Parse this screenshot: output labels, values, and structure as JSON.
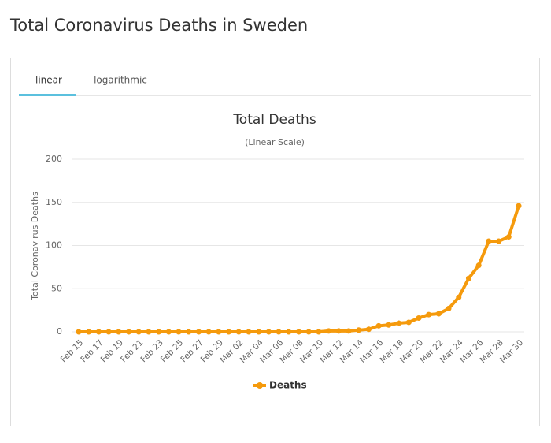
{
  "header": {
    "title": "Total Coronavirus Deaths in Sweden"
  },
  "tabs": [
    "linear",
    "logarithmic"
  ],
  "chart_data": {
    "type": "line",
    "title": "Total Deaths",
    "subtitle": "(Linear Scale)",
    "y_label": "Total Coronavirus Deaths",
    "categories": [
      "Feb 15",
      null,
      "Feb 17",
      null,
      "Feb 19",
      null,
      "Feb 21",
      null,
      "Feb 23",
      null,
      "Feb 25",
      null,
      "Feb 27",
      null,
      "Feb 29",
      null,
      "Mar 02",
      null,
      "Mar 04",
      null,
      "Mar 06",
      null,
      "Mar 08",
      null,
      "Mar 10",
      null,
      "Mar 12",
      null,
      "Mar 14",
      null,
      "Mar 16",
      null,
      "Mar 18",
      null,
      "Mar 20",
      null,
      "Mar 22",
      null,
      "Mar 24",
      null,
      "Mar 26",
      null,
      "Mar 28",
      null,
      "Mar 30"
    ],
    "series": [
      {
        "name": "Deaths",
        "color": "#f59a0c",
        "values": [
          0,
          0,
          0,
          0,
          0,
          0,
          0,
          0,
          0,
          0,
          0,
          0,
          0,
          0,
          0,
          0,
          0,
          0,
          0,
          0,
          0,
          0,
          0,
          0,
          0,
          1,
          1,
          1,
          2,
          3,
          7,
          8,
          10,
          11,
          16,
          20,
          21,
          27,
          40,
          62,
          77,
          105,
          105,
          110,
          146
        ]
      }
    ],
    "ylim": [
      0,
      200
    ],
    "yticks": [
      0,
      50,
      100,
      150,
      200
    ],
    "grid": true
  }
}
